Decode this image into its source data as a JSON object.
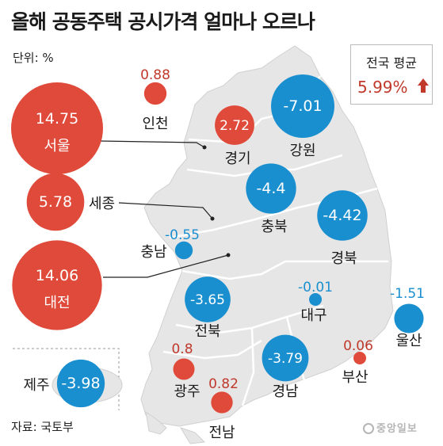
{
  "title": "올해 공동주택 공시가격 얼마나 오르나",
  "unit_label": "단위: %",
  "national_average": {
    "label": "전국 평균",
    "value_text": "5.99%",
    "value": 5.99,
    "direction_icon": "up-arrow-icon"
  },
  "source": "자료: 국토부",
  "logo_text": "중앙일보",
  "colors": {
    "increase": "#e04a3a",
    "decrease": "#1a8fcf",
    "increase_text": "#c0392b",
    "decrease_text": "#1a8fcf",
    "map_fill": "#e6e6e6",
    "map_stroke": "#ffffff"
  },
  "chart_data": {
    "type": "bubble-map",
    "title": "올해 공동주택 공시가격 얼마나 오르나",
    "unit": "%",
    "regions": [
      {
        "name": "서울",
        "value": 14.75,
        "value_text": "14.75"
      },
      {
        "name": "세종",
        "value": 5.78,
        "value_text": "5.78"
      },
      {
        "name": "대전",
        "value": 14.06,
        "value_text": "14.06"
      },
      {
        "name": "인천",
        "value": 0.88,
        "value_text": "0.88"
      },
      {
        "name": "경기",
        "value": 2.72,
        "value_text": "2.72"
      },
      {
        "name": "강원",
        "value": -7.01,
        "value_text": "-7.01"
      },
      {
        "name": "충북",
        "value": -4.4,
        "value_text": "-4.4"
      },
      {
        "name": "경북",
        "value": -4.42,
        "value_text": "-4.42"
      },
      {
        "name": "충남",
        "value": -0.55,
        "value_text": "-0.55"
      },
      {
        "name": "전북",
        "value": -3.65,
        "value_text": "-3.65"
      },
      {
        "name": "대구",
        "value": -0.01,
        "value_text": "-0.01"
      },
      {
        "name": "울산",
        "value": -1.51,
        "value_text": "-1.51"
      },
      {
        "name": "광주",
        "value": 0.8,
        "value_text": "0.8"
      },
      {
        "name": "경남",
        "value": -3.79,
        "value_text": "-3.79"
      },
      {
        "name": "부산",
        "value": 0.06,
        "value_text": "0.06"
      },
      {
        "name": "전남",
        "value": 0.82,
        "value_text": "0.82"
      },
      {
        "name": "제주",
        "value": -3.98,
        "value_text": "-3.98"
      }
    ]
  }
}
